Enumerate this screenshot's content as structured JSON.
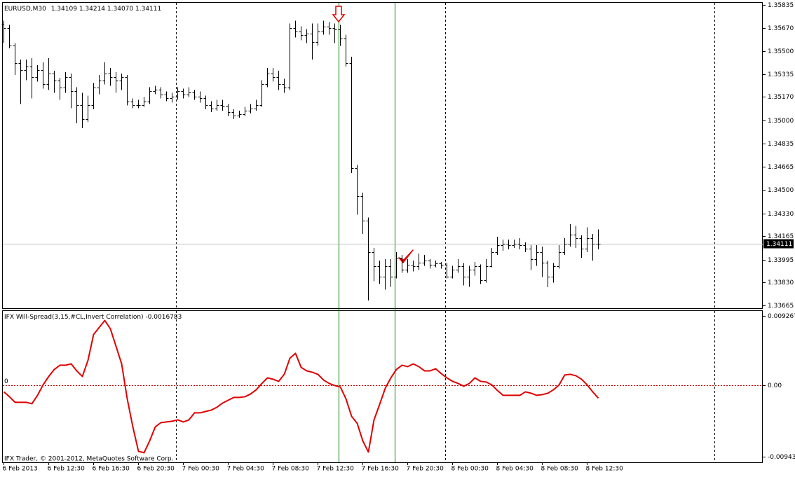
{
  "chart_data": [
    {
      "type": "ohlc",
      "title": "EURUSD,M30",
      "legend_values": [
        "1.34109",
        "1.34214",
        "1.34070",
        "1.34111"
      ],
      "color": "#000000",
      "current_line_color": "#c0c0c0",
      "ylim": [
        1.33645,
        1.35855
      ],
      "yticks": [
        1.35835,
        {
          "value": 1.3567,
          "label": "1.35670"
        },
        {
          "value": 1.355,
          "label": "1.35500"
        },
        1.35335,
        {
          "value": 1.3517,
          "label": "1.35170"
        },
        {
          "value": 1.35,
          "label": "1.35000"
        },
        1.34835,
        1.34665,
        {
          "value": 1.345,
          "label": "1.34500"
        },
        {
          "value": 1.3433,
          "label": "1.34330"
        },
        1.34165,
        1.33995,
        {
          "value": 1.3383,
          "label": "1.33830"
        },
        1.33665
      ],
      "open": [
        1.357,
        1.35668,
        1.35542,
        1.35415,
        1.35364,
        1.3539,
        1.35314,
        1.35364,
        1.35263,
        1.35339,
        1.35288,
        1.35238,
        1.35314,
        1.35213,
        1.35111,
        1.3501,
        1.35111,
        1.35238,
        1.35288,
        1.35339,
        1.35314,
        1.35288,
        1.35314,
        1.35137,
        1.35111,
        1.35111,
        1.35137,
        1.35213,
        1.35223,
        1.35187,
        1.35162,
        1.35172,
        1.35213,
        1.35187,
        1.35203,
        1.35172,
        1.35162,
        1.35111,
        1.35086,
        1.35111,
        1.35101,
        1.35061,
        1.35036,
        1.35046,
        1.35071,
        1.35086,
        1.35111,
        1.35263,
        1.35339,
        1.35314,
        1.35263,
        1.35238,
        1.35668,
        1.35643,
        1.35617,
        1.35628,
        1.35567,
        1.35643,
        1.35678,
        1.35668,
        1.35658,
        1.35592,
        1.35415,
        1.34656,
        1.34454,
        1.34277,
        1.34049,
        1.33948,
        1.33872,
        1.33948,
        1.33872,
        1.34008,
        1.33922,
        1.33958,
        1.33948,
        1.33973,
        1.33988,
        1.33958,
        1.33968,
        1.33958,
        1.33872,
        1.33922,
        1.33948,
        1.33872,
        1.33922,
        1.33948,
        1.33847,
        1.33948,
        1.34049,
        1.34099,
        1.3411,
        1.34099,
        1.3411,
        1.34099,
        1.34074,
        1.33998,
        1.34049,
        1.33973,
        1.33872,
        1.33948,
        1.34049,
        1.3411,
        1.34175,
        1.3415,
        1.34074,
        1.3415,
        1.34109
      ],
      "high": [
        1.3572,
        1.3569,
        1.3556,
        1.3544,
        1.3544,
        1.3545,
        1.354,
        1.3542,
        1.3545,
        1.3536,
        1.3531,
        1.3535,
        1.3534,
        1.3524,
        1.352,
        1.3518,
        1.3527,
        1.3533,
        1.3542,
        1.3538,
        1.3535,
        1.3534,
        1.3533,
        1.3516,
        1.3515,
        1.3517,
        1.3524,
        1.3525,
        1.3524,
        1.3521,
        1.352,
        1.3524,
        1.3523,
        1.3524,
        1.3522,
        1.3521,
        1.3518,
        1.3514,
        1.3515,
        1.3515,
        1.3512,
        1.3508,
        1.3507,
        1.351,
        1.3512,
        1.3515,
        1.3529,
        1.3538,
        1.3538,
        1.3536,
        1.353,
        1.357,
        1.3572,
        1.3568,
        1.3566,
        1.357,
        1.357,
        1.3572,
        1.3571,
        1.357,
        1.3569,
        1.3562,
        1.3546,
        1.3468,
        1.3448,
        1.343,
        1.3408,
        1.3399,
        1.34,
        1.34,
        1.3405,
        1.3403,
        1.34,
        1.3399,
        1.3404,
        1.3403,
        1.34,
        1.3399,
        1.3398,
        1.3397,
        1.3395,
        1.34,
        1.3397,
        1.3395,
        1.3398,
        1.3396,
        1.34,
        1.3408,
        1.3416,
        1.3414,
        1.3414,
        1.3414,
        1.3415,
        1.3412,
        1.341,
        1.341,
        1.3409,
        1.3399,
        1.3397,
        1.341,
        1.3415,
        1.34252,
        1.3424,
        1.3417,
        1.3423,
        1.3418,
        1.34214
      ],
      "low": [
        1.3556,
        1.3552,
        1.3533,
        1.3512,
        1.3529,
        1.3516,
        1.3528,
        1.3523,
        1.3522,
        1.352,
        1.3515,
        1.352,
        1.3509,
        1.3498,
        1.34945,
        1.3499,
        1.3508,
        1.3519,
        1.3526,
        1.3525,
        1.352,
        1.3522,
        1.3511,
        1.3509,
        1.3509,
        1.351,
        1.3512,
        1.3519,
        1.3516,
        1.3514,
        1.3513,
        1.3515,
        1.3516,
        1.3517,
        1.3515,
        1.3513,
        1.3508,
        1.3506,
        1.3507,
        1.3507,
        1.3503,
        1.3501,
        1.3502,
        1.3503,
        1.3505,
        1.3507,
        1.351,
        1.3524,
        1.3528,
        1.3522,
        1.352,
        1.3522,
        1.356,
        1.3558,
        1.3556,
        1.3544,
        1.3554,
        1.3562,
        1.3562,
        1.3556,
        1.3554,
        1.3539,
        1.3462,
        1.3432,
        1.3418,
        1.337,
        1.3384,
        1.3382,
        1.3378,
        1.338,
        1.3386,
        1.339,
        1.339,
        1.3391,
        1.3392,
        1.3395,
        1.3393,
        1.3394,
        1.3393,
        1.3386,
        1.3386,
        1.339,
        1.3381,
        1.338,
        1.3388,
        1.3382,
        1.3383,
        1.3394,
        1.3403,
        1.3406,
        1.3407,
        1.3408,
        1.3407,
        1.3405,
        1.3392,
        1.3395,
        1.3387,
        1.33797,
        1.3383,
        1.3393,
        1.3403,
        1.3409,
        1.3408,
        1.3401,
        1.3405,
        1.3399,
        1.3407
      ],
      "close": [
        1.35668,
        1.35542,
        1.35415,
        1.35364,
        1.3539,
        1.35314,
        1.35364,
        1.35263,
        1.35339,
        1.35288,
        1.35238,
        1.35314,
        1.35213,
        1.35111,
        1.3501,
        1.35111,
        1.35238,
        1.35288,
        1.35339,
        1.35314,
        1.35288,
        1.35314,
        1.35137,
        1.35111,
        1.35111,
        1.35137,
        1.35213,
        1.35223,
        1.35187,
        1.35162,
        1.35172,
        1.35213,
        1.35187,
        1.35203,
        1.35172,
        1.35162,
        1.35111,
        1.35086,
        1.35111,
        1.35101,
        1.35061,
        1.35036,
        1.35046,
        1.35071,
        1.35086,
        1.35111,
        1.35263,
        1.35339,
        1.35314,
        1.35263,
        1.35238,
        1.35668,
        1.35643,
        1.35617,
        1.35628,
        1.35567,
        1.35643,
        1.35678,
        1.35668,
        1.35658,
        1.35592,
        1.35415,
        1.34656,
        1.34454,
        1.34277,
        1.34049,
        1.33948,
        1.33872,
        1.33948,
        1.33872,
        1.34008,
        1.33922,
        1.33958,
        1.33948,
        1.33973,
        1.33988,
        1.33958,
        1.33968,
        1.33958,
        1.33872,
        1.33922,
        1.33948,
        1.33872,
        1.33922,
        1.33948,
        1.33847,
        1.33948,
        1.34049,
        1.34099,
        1.3411,
        1.34099,
        1.3411,
        1.34099,
        1.34074,
        1.33998,
        1.34049,
        1.33973,
        1.33872,
        1.33948,
        1.34049,
        1.3411,
        1.34175,
        1.3415,
        1.34074,
        1.3415,
        1.34109,
        1.34111
      ]
    },
    {
      "type": "line",
      "title": "IFX Will-Spread(3,15,#CL,Invert Correlation)",
      "color": "#e00000",
      "level": 0,
      "level_color": "#c00000",
      "annotation": "IFX Trader, © 2001-2012, MetaQuotes Software Corp.",
      "ylim": [
        -0.0102,
        0.01
      ],
      "yticks": [
        0.009267,
        {
          "value": 0,
          "label": "0.00"
        },
        -0.009434
      ],
      "categories": [
        "6 Feb 2013",
        null,
        null,
        null,
        null,
        null,
        null,
        null,
        "6 Feb 12:30",
        null,
        null,
        null,
        null,
        null,
        null,
        null,
        "6 Feb 16:30",
        null,
        null,
        null,
        null,
        null,
        null,
        null,
        "6 Feb 20:30",
        null,
        null,
        null,
        null,
        null,
        null,
        null,
        "7 Feb 00:30",
        null,
        null,
        null,
        null,
        null,
        null,
        null,
        "7 Feb 04:30",
        null,
        null,
        null,
        null,
        null,
        null,
        null,
        "7 Feb 08:30",
        null,
        null,
        null,
        null,
        null,
        null,
        null,
        "7 Feb 12:30",
        null,
        null,
        null,
        null,
        null,
        null,
        null,
        "7 Feb 16:30",
        null,
        null,
        null,
        null,
        null,
        null,
        null,
        "7 Feb 20:30",
        null,
        null,
        null,
        null,
        null,
        null,
        null,
        "8 Feb 00:30",
        null,
        null,
        null,
        null,
        null,
        null,
        null,
        "8 Feb 04:30",
        null,
        null,
        null,
        null,
        null,
        null,
        null,
        "8 Feb 08:30",
        null,
        null,
        null,
        null,
        null,
        null,
        null,
        "8 Feb 12:30",
        null,
        null
      ],
      "values": [
        -0.00084,
        -0.00149,
        -0.00223,
        -0.00223,
        -0.00223,
        -0.00242,
        -0.0013,
        9e-05,
        0.00121,
        0.00214,
        0.0027,
        0.0027,
        0.00288,
        0.00195,
        0.00121,
        0.00335,
        0.00679,
        0.00772,
        0.00865,
        0.00753,
        0.00521,
        0.00288,
        -0.00177,
        -0.00549,
        -0.00874,
        -0.00893,
        -0.00735,
        -0.00549,
        -0.00493,
        -0.00484,
        -0.00474,
        -0.00456,
        -0.00484,
        -0.00456,
        -0.00363,
        -0.00363,
        -0.00344,
        -0.00326,
        -0.00288,
        -0.00233,
        -0.00195,
        -0.00158,
        -0.00158,
        -0.00149,
        -0.00112,
        -0.00056,
        0.00028,
        0.00102,
        0.00084,
        0.00056,
        0.00149,
        0.00363,
        0.00428,
        0.00242,
        0.00195,
        0.00177,
        0.00149,
        0.00074,
        0.00028,
        0,
        -0.00019,
        -0.00177,
        -0.00409,
        -0.00502,
        -0.00735,
        -0.00884,
        -0.00456,
        -0.00251,
        -0.00037,
        0.00102,
        0.00214,
        0.0027,
        0.00251,
        0.00288,
        0.00251,
        0.00195,
        0.00195,
        0.00223,
        0.00158,
        0.00102,
        0.00056,
        0.00028,
        -9e-05,
        0.00028,
        0.00102,
        0.00056,
        0.00047,
        9e-05,
        -0.00065,
        -0.0013,
        -0.0013,
        -0.0013,
        -0.0013,
        -0.00084,
        -0.00102,
        -0.0013,
        -0.00121,
        -0.00102,
        -0.00056,
        9e-05,
        0.0014,
        0.00149,
        0.0013,
        0.00084,
        9e-05,
        -0.00084,
        -0.0016783
      ]
    }
  ]
}
